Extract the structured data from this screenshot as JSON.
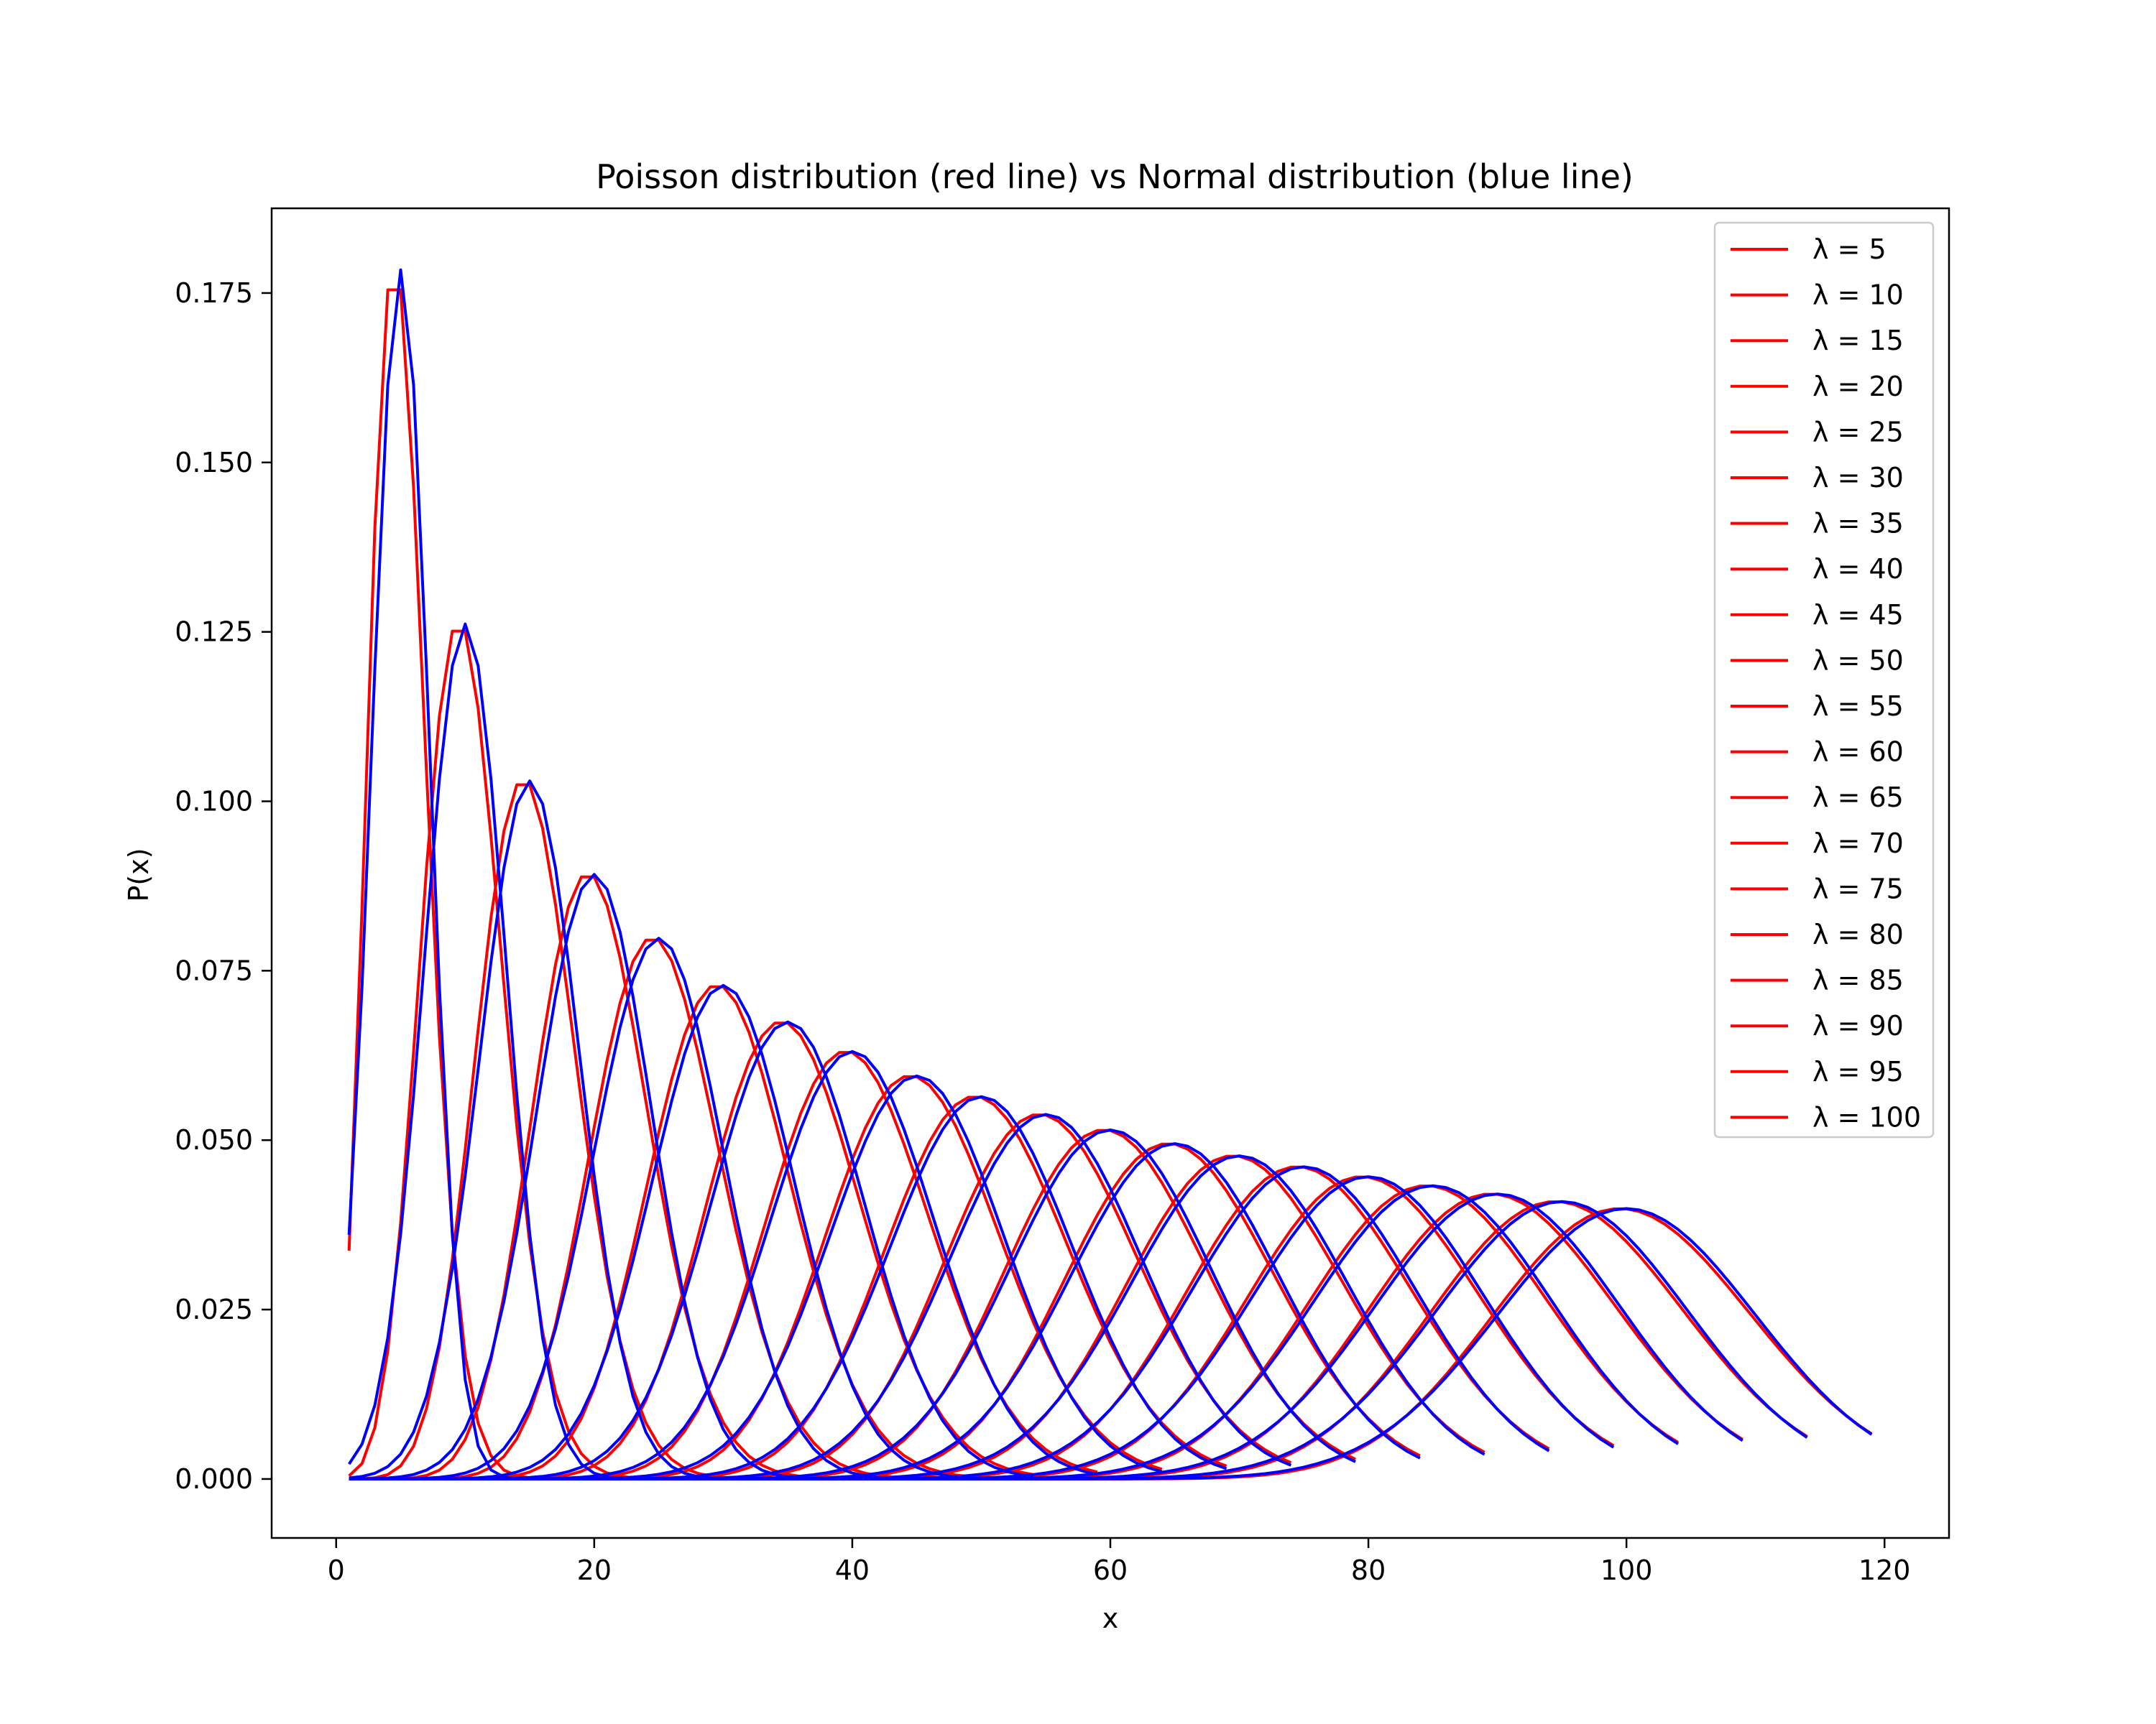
{
  "chart_data": {
    "type": "line",
    "title": "Poisson distribution (red line) vs Normal distribution (blue line)",
    "xlabel": "x",
    "ylabel": "P(x)",
    "xlim": [
      -5,
      125
    ],
    "ylim": [
      -0.0087,
      0.1875
    ],
    "x_ticks": [
      0,
      20,
      40,
      60,
      80,
      100,
      120
    ],
    "x_tick_labels": [
      "0",
      "20",
      "40",
      "60",
      "80",
      "100",
      "120"
    ],
    "y_ticks": [
      0.0,
      0.025,
      0.05,
      0.075,
      0.1,
      0.125,
      0.15,
      0.175
    ],
    "y_tick_labels": [
      "0.000",
      "0.025",
      "0.050",
      "0.075",
      "0.100",
      "0.125",
      "0.150",
      "0.175"
    ],
    "grid": false,
    "legend_placement": "top-right",
    "colors": {
      "poisson": "#ff0000",
      "normal": "#0000ff",
      "frame": "#000000",
      "legend_border": "#cccccc"
    },
    "lambdas": [
      5,
      10,
      15,
      20,
      25,
      30,
      35,
      40,
      45,
      50,
      55,
      60,
      65,
      70,
      75,
      80,
      85,
      90,
      95,
      100
    ],
    "x_range_start": 1,
    "x_range_end_offset": 20,
    "series": [
      {
        "legend_label": "λ = 5",
        "lambda": 5,
        "distribution": "Poisson",
        "color": "#ff0000"
      },
      {
        "legend_label": "λ = 10",
        "lambda": 10,
        "distribution": "Poisson",
        "color": "#ff0000"
      },
      {
        "legend_label": "λ = 15",
        "lambda": 15,
        "distribution": "Poisson",
        "color": "#ff0000"
      },
      {
        "legend_label": "λ = 20",
        "lambda": 20,
        "distribution": "Poisson",
        "color": "#ff0000"
      },
      {
        "legend_label": "λ = 25",
        "lambda": 25,
        "distribution": "Poisson",
        "color": "#ff0000"
      },
      {
        "legend_label": "λ = 30",
        "lambda": 30,
        "distribution": "Poisson",
        "color": "#ff0000"
      },
      {
        "legend_label": "λ = 35",
        "lambda": 35,
        "distribution": "Poisson",
        "color": "#ff0000"
      },
      {
        "legend_label": "λ = 40",
        "lambda": 40,
        "distribution": "Poisson",
        "color": "#ff0000"
      },
      {
        "legend_label": "λ = 45",
        "lambda": 45,
        "distribution": "Poisson",
        "color": "#ff0000"
      },
      {
        "legend_label": "λ = 50",
        "lambda": 50,
        "distribution": "Poisson",
        "color": "#ff0000"
      },
      {
        "legend_label": "λ = 55",
        "lambda": 55,
        "distribution": "Poisson",
        "color": "#ff0000"
      },
      {
        "legend_label": "λ = 60",
        "lambda": 60,
        "distribution": "Poisson",
        "color": "#ff0000"
      },
      {
        "legend_label": "λ = 65",
        "lambda": 65,
        "distribution": "Poisson",
        "color": "#ff0000"
      },
      {
        "legend_label": "λ = 70",
        "lambda": 70,
        "distribution": "Poisson",
        "color": "#ff0000"
      },
      {
        "legend_label": "λ = 75",
        "lambda": 75,
        "distribution": "Poisson",
        "color": "#ff0000"
      },
      {
        "legend_label": "λ = 80",
        "lambda": 80,
        "distribution": "Poisson",
        "color": "#ff0000"
      },
      {
        "legend_label": "λ = 85",
        "lambda": 85,
        "distribution": "Poisson",
        "color": "#ff0000"
      },
      {
        "legend_label": "λ = 90",
        "lambda": 90,
        "distribution": "Poisson",
        "color": "#ff0000"
      },
      {
        "legend_label": "λ = 95",
        "lambda": 95,
        "distribution": "Poisson",
        "color": "#ff0000"
      },
      {
        "legend_label": "λ = 100",
        "lambda": 100,
        "distribution": "Poisson",
        "color": "#ff0000"
      },
      {
        "lambda": 5,
        "distribution": "Normal",
        "color": "#0000ff"
      },
      {
        "lambda": 10,
        "distribution": "Normal",
        "color": "#0000ff"
      },
      {
        "lambda": 15,
        "distribution": "Normal",
        "color": "#0000ff"
      },
      {
        "lambda": 20,
        "distribution": "Normal",
        "color": "#0000ff"
      },
      {
        "lambda": 25,
        "distribution": "Normal",
        "color": "#0000ff"
      },
      {
        "lambda": 30,
        "distribution": "Normal",
        "color": "#0000ff"
      },
      {
        "lambda": 35,
        "distribution": "Normal",
        "color": "#0000ff"
      },
      {
        "lambda": 40,
        "distribution": "Normal",
        "color": "#0000ff"
      },
      {
        "lambda": 45,
        "distribution": "Normal",
        "color": "#0000ff"
      },
      {
        "lambda": 50,
        "distribution": "Normal",
        "color": "#0000ff"
      },
      {
        "lambda": 55,
        "distribution": "Normal",
        "color": "#0000ff"
      },
      {
        "lambda": 60,
        "distribution": "Normal",
        "color": "#0000ff"
      },
      {
        "lambda": 65,
        "distribution": "Normal",
        "color": "#0000ff"
      },
      {
        "lambda": 70,
        "distribution": "Normal",
        "color": "#0000ff"
      },
      {
        "lambda": 75,
        "distribution": "Normal",
        "color": "#0000ff"
      },
      {
        "lambda": 80,
        "distribution": "Normal",
        "color": "#0000ff"
      },
      {
        "lambda": 85,
        "distribution": "Normal",
        "color": "#0000ff"
      },
      {
        "lambda": 90,
        "distribution": "Normal",
        "color": "#0000ff"
      },
      {
        "lambda": 95,
        "distribution": "Normal",
        "color": "#0000ff"
      },
      {
        "lambda": 100,
        "distribution": "Normal",
        "color": "#0000ff"
      }
    ]
  }
}
